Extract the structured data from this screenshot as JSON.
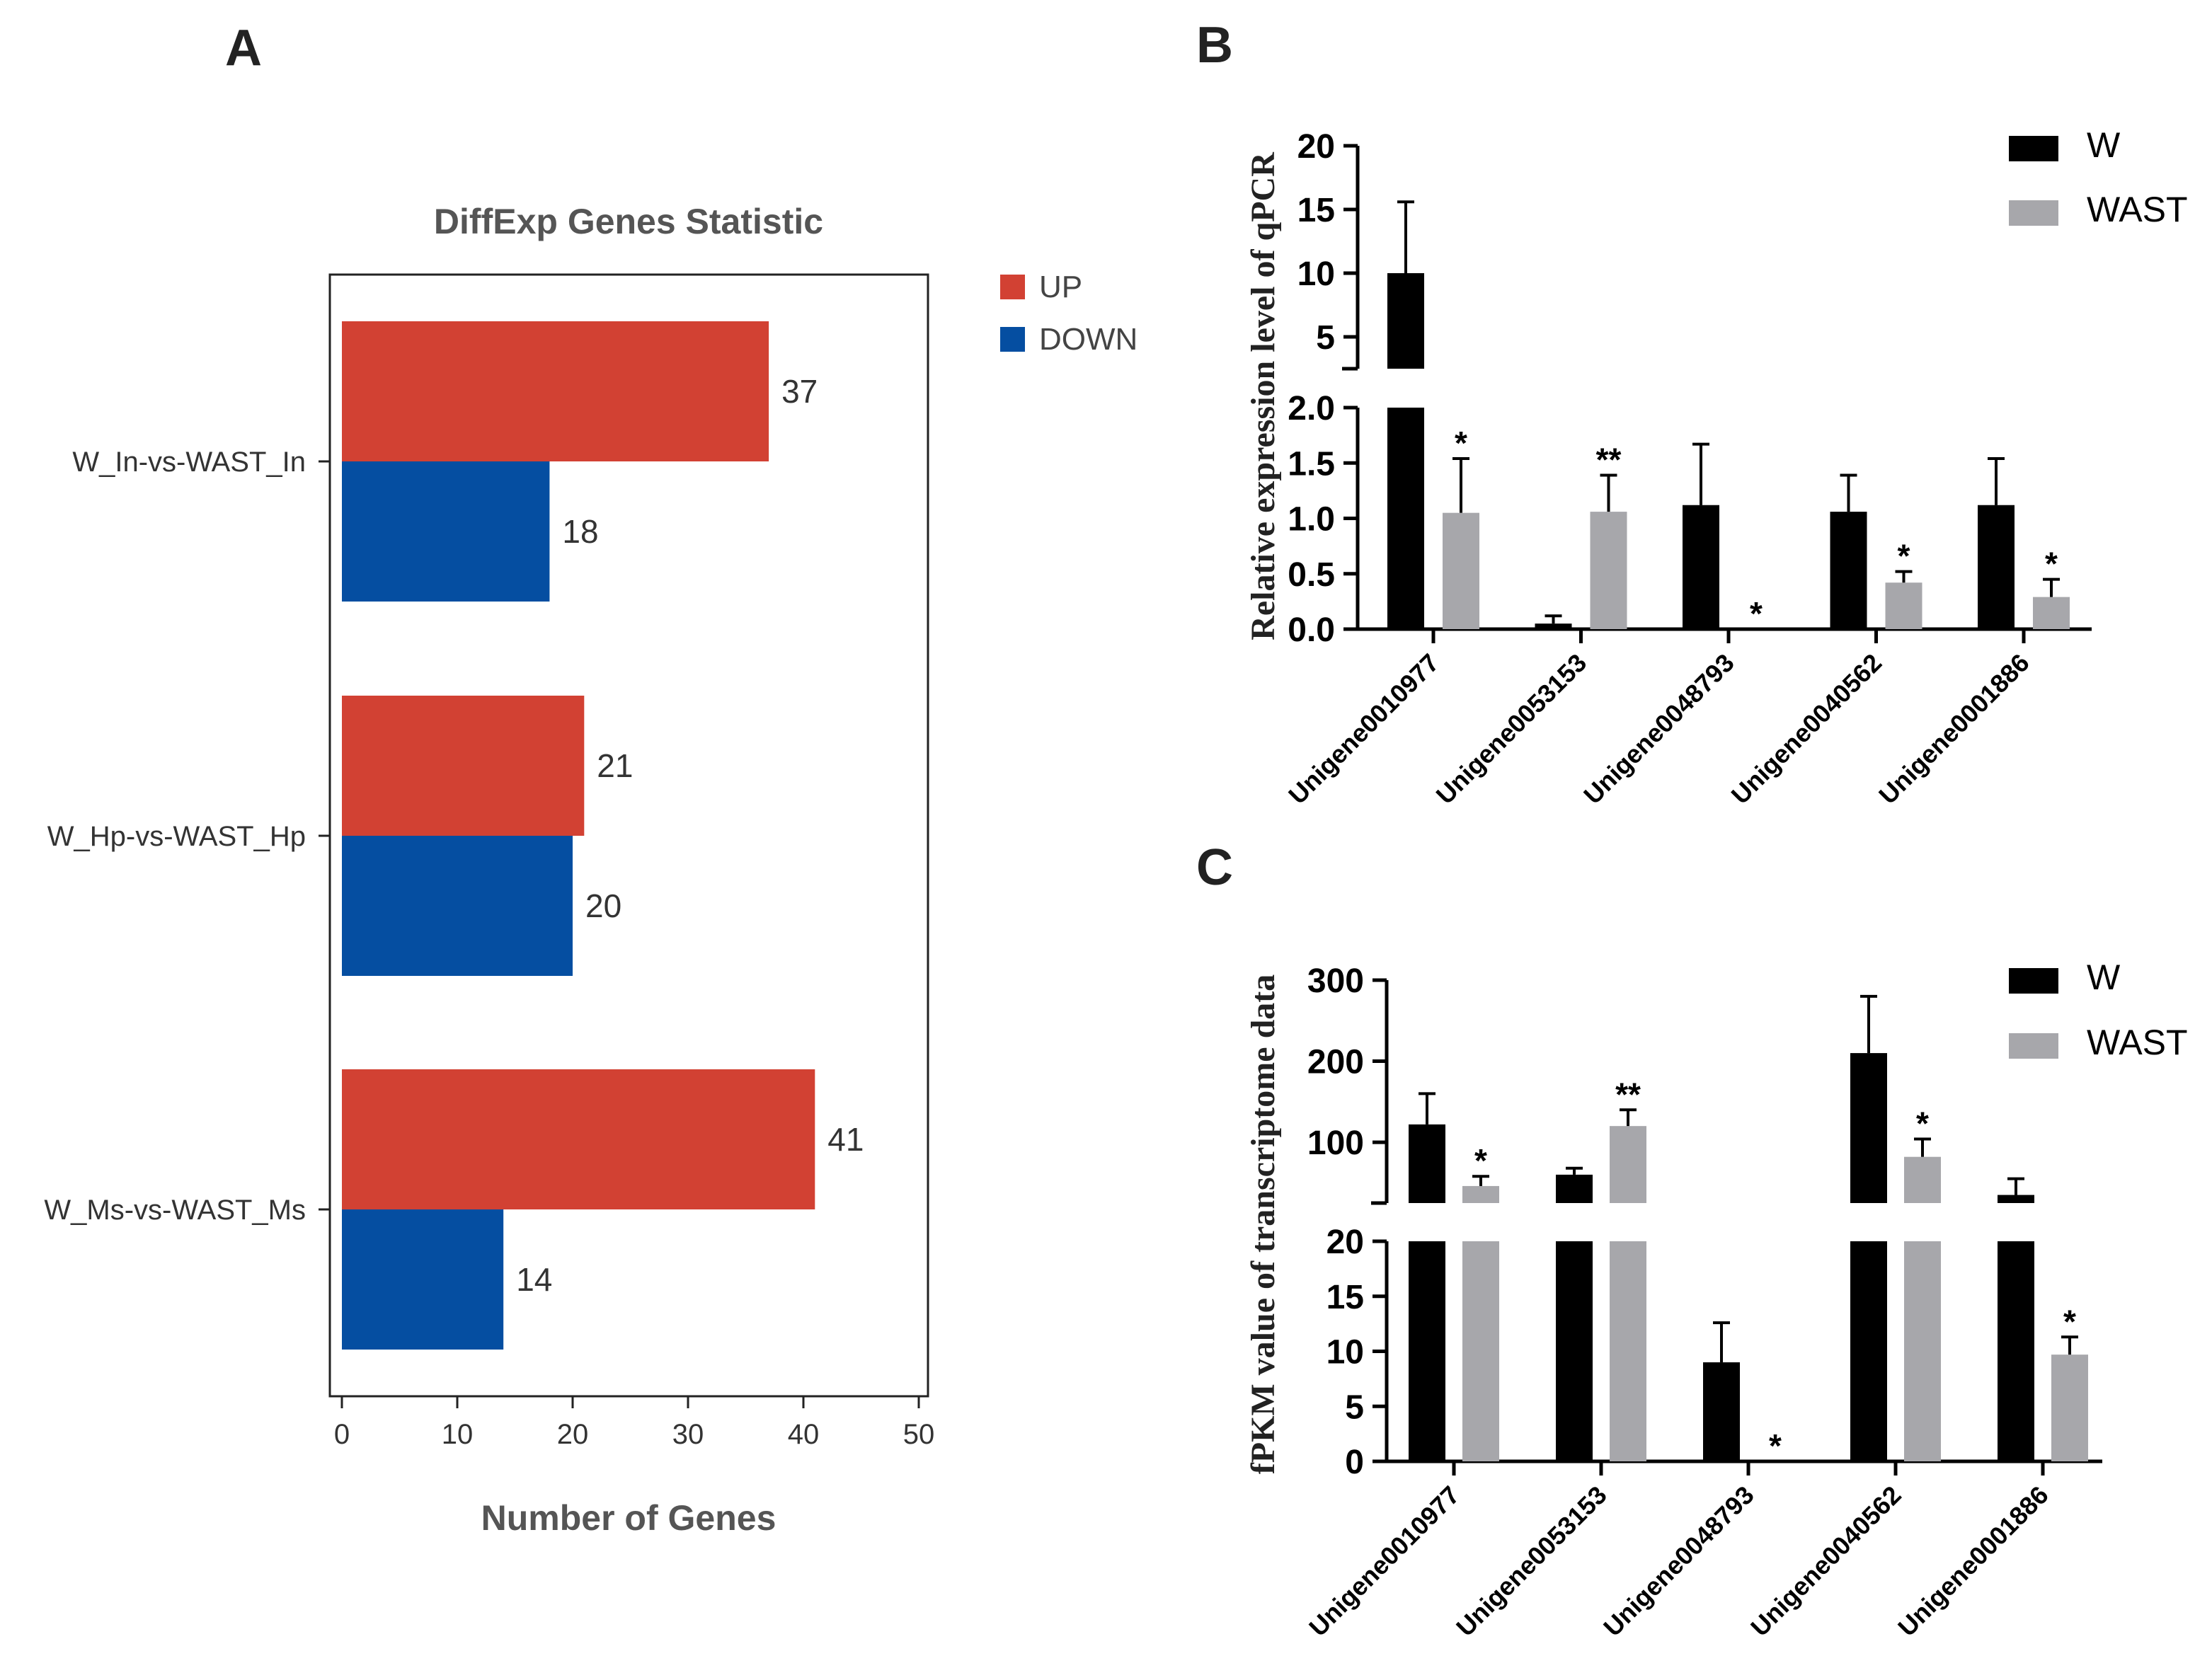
{
  "colors": {
    "up": "#d24133",
    "down": "#054ea1",
    "w": "#000000",
    "wast": "#a7a7ab",
    "panel_text": "#222222"
  },
  "chart_data": [
    {
      "panel": "A",
      "type": "bar",
      "orientation": "horizontal",
      "title": "DiffExp Genes Statistic",
      "xlabel": "Number of Genes",
      "ylabel": "",
      "xlim": [
        0,
        50
      ],
      "xticks": [
        "0",
        "10",
        "20",
        "30",
        "40",
        "50"
      ],
      "categories": [
        "W_In-vs-WAST_In",
        "W_Hp-vs-WAST_Hp",
        "W_Ms-vs-WAST_Ms"
      ],
      "series": [
        {
          "name": "UP",
          "values": [
            37,
            21,
            41
          ]
        },
        {
          "name": "DOWN",
          "values": [
            18,
            20,
            14
          ]
        }
      ],
      "legend_position": "right-top"
    },
    {
      "panel": "B",
      "type": "bar",
      "title": "",
      "ylabel": "Relative expression level of qPCR",
      "xlabel": "",
      "axis_break": {
        "lower_range": [
          0,
          2.0
        ],
        "lower_ticks": [
          "0.0",
          "0.5",
          "1.0",
          "1.5",
          "2.0"
        ],
        "upper_range": [
          2.5,
          20
        ],
        "upper_ticks": [
          "5",
          "10",
          "15",
          "20"
        ]
      },
      "categories": [
        "Unigene0010977",
        "Unigene0053153",
        "Unigene0048793",
        "Unigene0040562",
        "Unigene0001886"
      ],
      "series": [
        {
          "name": "W",
          "values": [
            10.0,
            0.05,
            1.12,
            1.06,
            1.12
          ],
          "errors": [
            5.6,
            0.07,
            0.55,
            0.33,
            0.42
          ]
        },
        {
          "name": "WAST",
          "values": [
            1.05,
            1.06,
            0.0,
            0.42,
            0.29
          ],
          "errors": [
            0.49,
            0.33,
            0.0,
            0.1,
            0.16
          ]
        }
      ],
      "significance": [
        "*",
        "**",
        "*",
        "*",
        "*"
      ],
      "legend_position": "top-right"
    },
    {
      "panel": "C",
      "type": "bar",
      "title": "",
      "ylabel": "fPKM value of transcriptome data",
      "xlabel": "",
      "axis_break": {
        "lower_range": [
          0,
          20
        ],
        "lower_ticks": [
          "0",
          "5",
          "10",
          "15",
          "20"
        ],
        "upper_range": [
          25,
          300
        ],
        "upper_ticks": [
          "100",
          "200",
          "300"
        ]
      },
      "categories": [
        "Unigene0010977",
        "Unigene0053153",
        "Unigene0048793",
        "Unigene0040562",
        "Unigene0001886"
      ],
      "series": [
        {
          "name": "W",
          "values": [
            122,
            60,
            9.0,
            210,
            35
          ],
          "errors": [
            38,
            8,
            3.6,
            70,
            20
          ]
        },
        {
          "name": "WAST",
          "values": [
            46,
            120,
            0.0,
            82,
            9.7
          ],
          "errors": [
            12,
            20,
            0.0,
            22,
            1.6
          ]
        }
      ],
      "significance": [
        "*",
        "**",
        "*",
        "*",
        "*"
      ],
      "legend_position": "top-right"
    }
  ],
  "panel_labels": {
    "a": "A",
    "b": "B",
    "c": "C"
  }
}
